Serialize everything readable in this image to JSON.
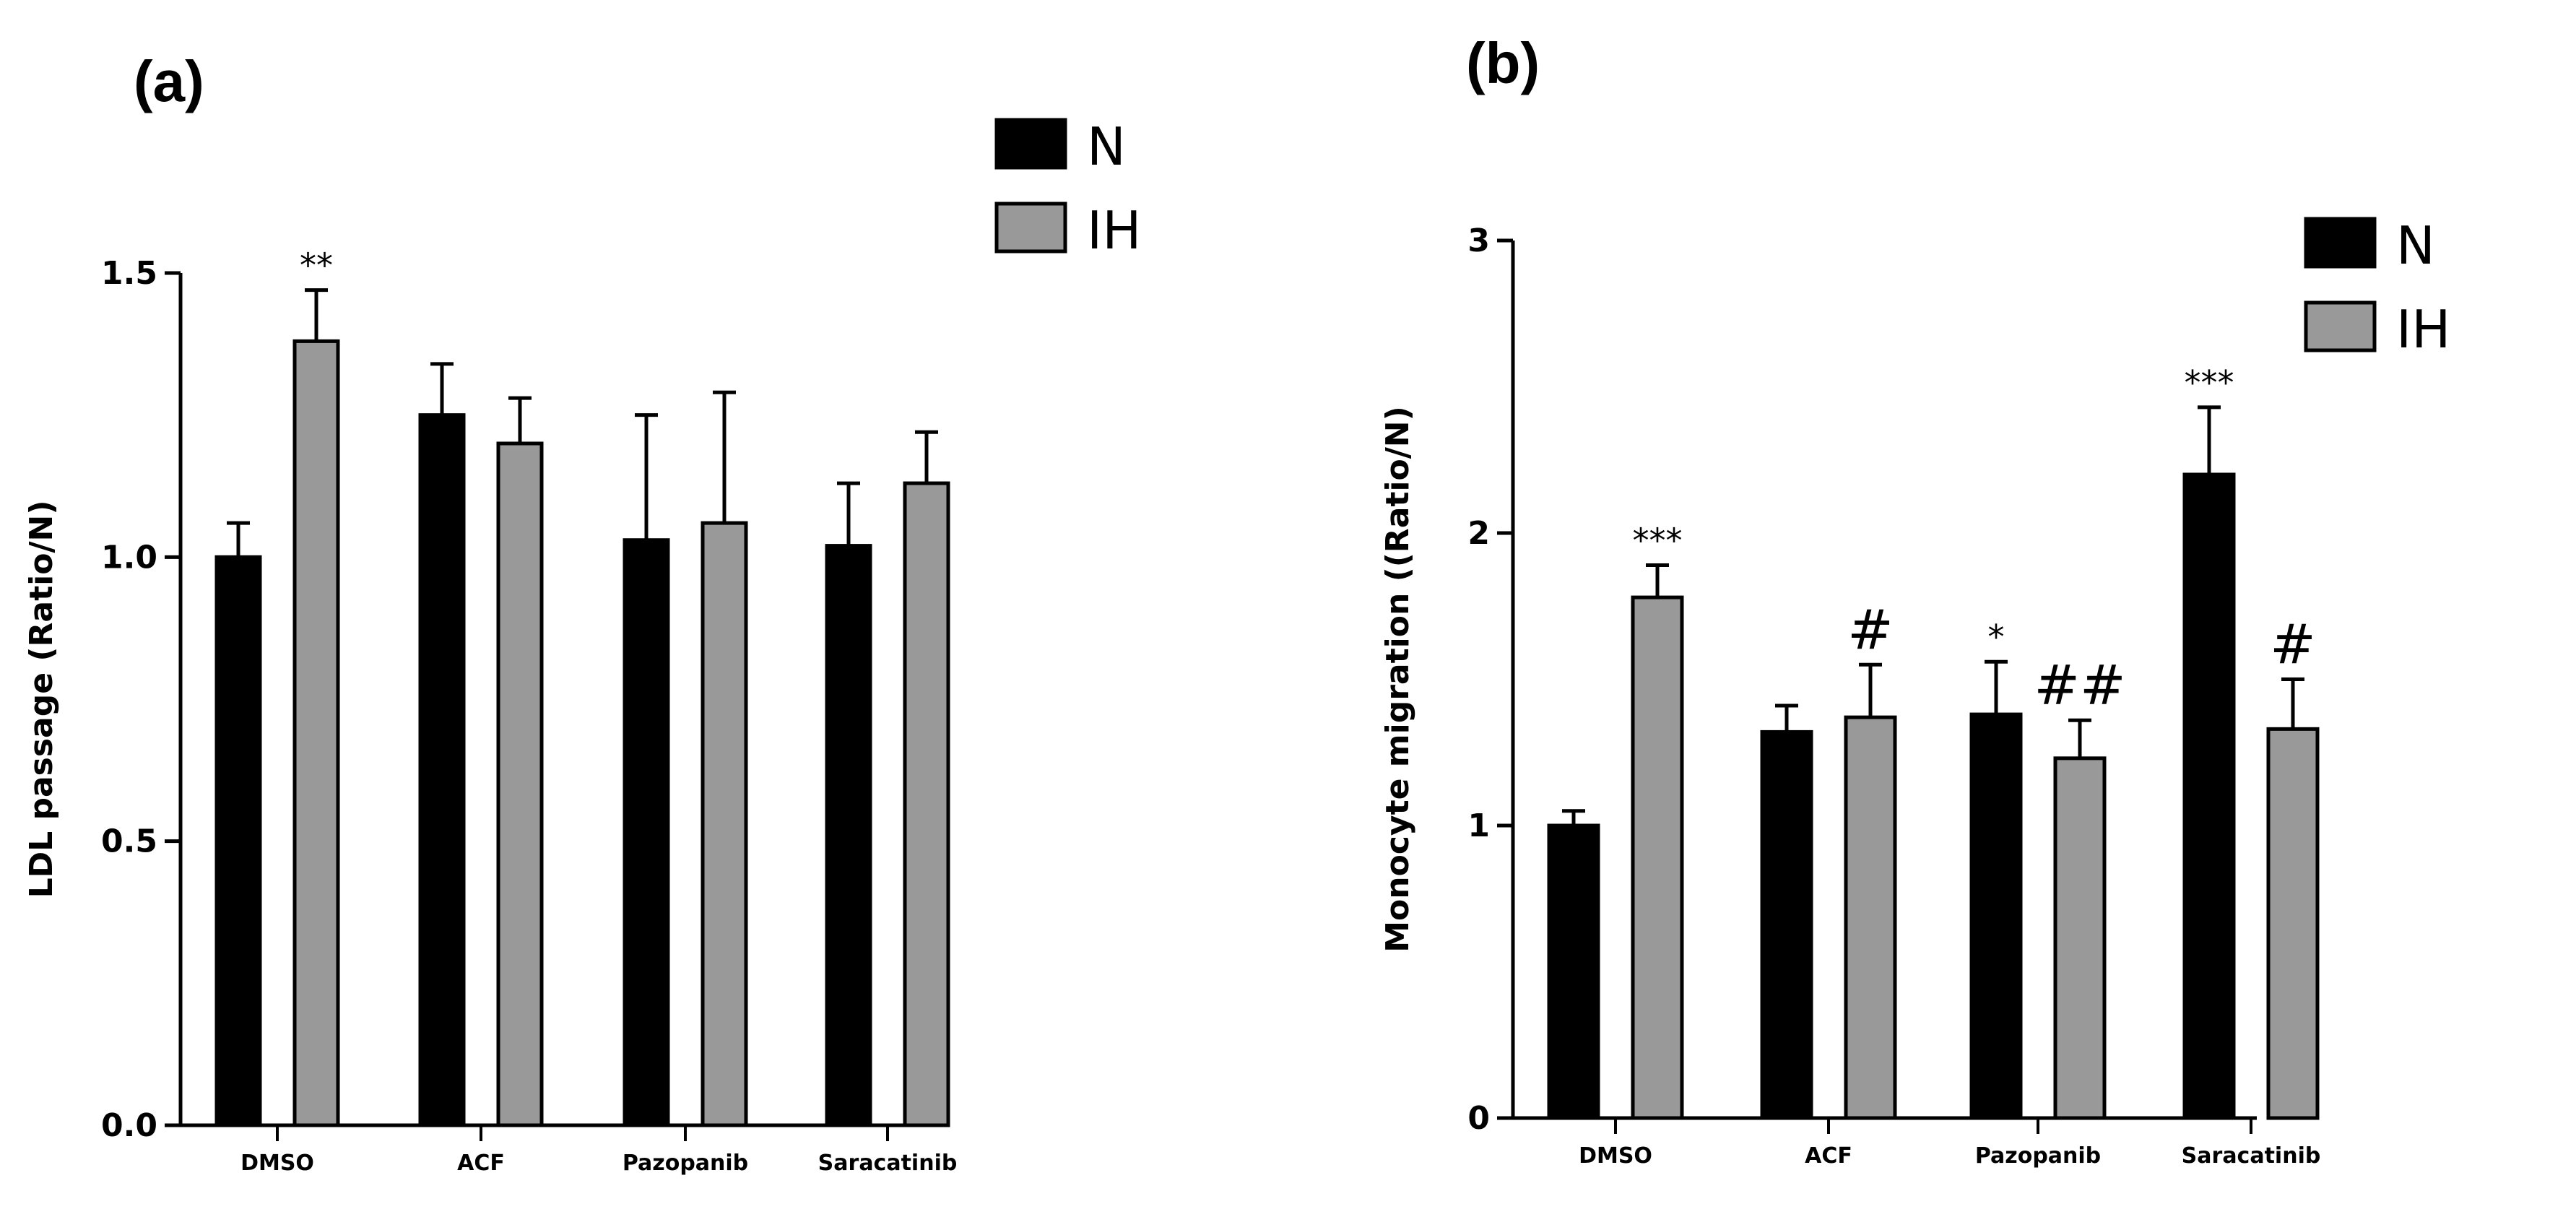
{
  "chart_data": [
    {
      "type": "bar",
      "panel_label": "(a)",
      "title": "",
      "xlabel": "",
      "ylabel": "LDL passage (Ratio/N)",
      "ylim": [
        0,
        1.5
      ],
      "yticks": [
        0,
        0.5,
        1.0,
        1.5
      ],
      "ytick_labels": [
        "0.0",
        "0.5",
        "1.0",
        "1.5"
      ],
      "categories": [
        "DMSO",
        "ACF",
        "Pazopanib",
        "Saracatinib"
      ],
      "legend_position": "top-right",
      "series": [
        {
          "name": "N",
          "color": "#000000",
          "values": [
            1.0,
            1.25,
            1.03,
            1.02
          ],
          "errors": [
            0.06,
            0.09,
            0.22,
            0.11
          ],
          "annotations": [
            "",
            "",
            "",
            ""
          ]
        },
        {
          "name": "IH",
          "color": "#999999",
          "values": [
            1.38,
            1.2,
            1.06,
            1.13
          ],
          "errors": [
            0.09,
            0.08,
            0.23,
            0.09
          ],
          "annotations": [
            "**",
            "",
            "",
            ""
          ]
        }
      ]
    },
    {
      "type": "bar",
      "panel_label": "(b)",
      "title": "",
      "xlabel": "",
      "ylabel": "Monocyte migration ((Ratio/N)",
      "ylim": [
        0,
        3
      ],
      "yticks": [
        0,
        1,
        2,
        3
      ],
      "ytick_labels": [
        "0",
        "1",
        "2",
        "3"
      ],
      "categories": [
        "DMSO",
        "ACF",
        "Pazopanib",
        "Saracatinib"
      ],
      "legend_position": "top-right",
      "series": [
        {
          "name": "N",
          "color": "#000000",
          "values": [
            1.0,
            1.32,
            1.38,
            2.2
          ],
          "errors": [
            0.05,
            0.09,
            0.18,
            0.23
          ],
          "annotations": [
            "",
            "",
            "*",
            "***"
          ]
        },
        {
          "name": "IH",
          "color": "#999999",
          "values": [
            1.78,
            1.37,
            1.23,
            1.33
          ],
          "errors": [
            0.11,
            0.18,
            0.13,
            0.17
          ],
          "annotations": [
            "***",
            "#",
            "##",
            "#"
          ]
        }
      ]
    }
  ]
}
